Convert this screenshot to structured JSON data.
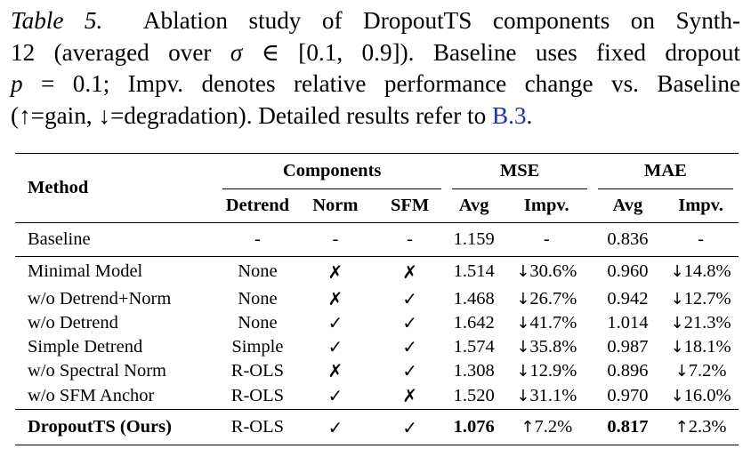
{
  "caption": {
    "label": "Table 5.",
    "line1": "Ablation study of DropoutTS components on Synth-",
    "line2a": "12 (averaged over ",
    "line2_sigma": "σ",
    "line2_in": " ∈ ",
    "line2_range": "[0.1, 0.9]",
    "line2b": "). Baseline uses fixed dropout",
    "line3_p": "p",
    "line3_eq": " = 0.1",
    "line3b": "; Impv. denotes relative performance change vs. Baseline",
    "line4a": "(↑=gain, ↓=degradation). Detailed results refer to ",
    "line4_link": "B.3",
    "line4b": "."
  },
  "table": {
    "header": {
      "method": "Method",
      "components": "Components",
      "mse": "MSE",
      "mae": "MAE",
      "detrend": "Detrend",
      "norm": "Norm",
      "sfm": "SFM",
      "mse_avg": "Avg",
      "mse_impv": "Impv.",
      "mae_avg": "Avg",
      "mae_impv": "Impv."
    },
    "baseline": {
      "method": "Baseline",
      "detrend": "-",
      "norm": "-",
      "sfm": "-",
      "mse_avg": "1.159",
      "mse_impv": "-",
      "mae_avg": "0.836",
      "mae_impv": "-"
    },
    "rows": [
      {
        "method": "Minimal Model",
        "detrend": "None",
        "norm": "✗",
        "sfm": "✗",
        "mse_avg": "1.514",
        "mse_arrow": "↓",
        "mse_impv": "30.6%",
        "mae_avg": "0.960",
        "mae_arrow": "↓",
        "mae_impv": "14.8%"
      },
      {
        "method": "w/o Detrend+Norm",
        "detrend": "None",
        "norm": "✗",
        "sfm": "✓",
        "mse_avg": "1.468",
        "mse_arrow": "↓",
        "mse_impv": "26.7%",
        "mae_avg": "0.942",
        "mae_arrow": "↓",
        "mae_impv": "12.7%"
      },
      {
        "method": "w/o Detrend",
        "detrend": "None",
        "norm": "✓",
        "sfm": "✓",
        "mse_avg": "1.642",
        "mse_arrow": "↓",
        "mse_impv": "41.7%",
        "mae_avg": "1.014",
        "mae_arrow": "↓",
        "mae_impv": "21.3%"
      },
      {
        "method": "Simple Detrend",
        "detrend": "Simple",
        "norm": "✓",
        "sfm": "✓",
        "mse_avg": "1.574",
        "mse_arrow": "↓",
        "mse_impv": "35.8%",
        "mae_avg": "0.987",
        "mae_arrow": "↓",
        "mae_impv": "18.1%"
      },
      {
        "method": "w/o Spectral Norm",
        "detrend": "R-OLS",
        "norm": "✗",
        "sfm": "✓",
        "mse_avg": "1.308",
        "mse_arrow": "↓",
        "mse_impv": "12.9%",
        "mae_avg": "0.896",
        "mae_arrow": "↓",
        "mae_impv": "7.2%"
      },
      {
        "method": "w/o SFM Anchor",
        "detrend": "R-OLS",
        "norm": "✓",
        "sfm": "✗",
        "mse_avg": "1.520",
        "mse_arrow": "↓",
        "mse_impv": "31.1%",
        "mae_avg": "0.970",
        "mae_arrow": "↓",
        "mae_impv": "16.0%"
      }
    ],
    "ours": {
      "method": "DropoutTS (Ours)",
      "detrend": "R-OLS",
      "norm": "✓",
      "sfm": "✓",
      "mse_avg": "1.076",
      "mse_arrow": "↑",
      "mse_impv": "7.2%",
      "mae_avg": "0.817",
      "mae_arrow": "↑",
      "mae_impv": "2.3%"
    }
  }
}
